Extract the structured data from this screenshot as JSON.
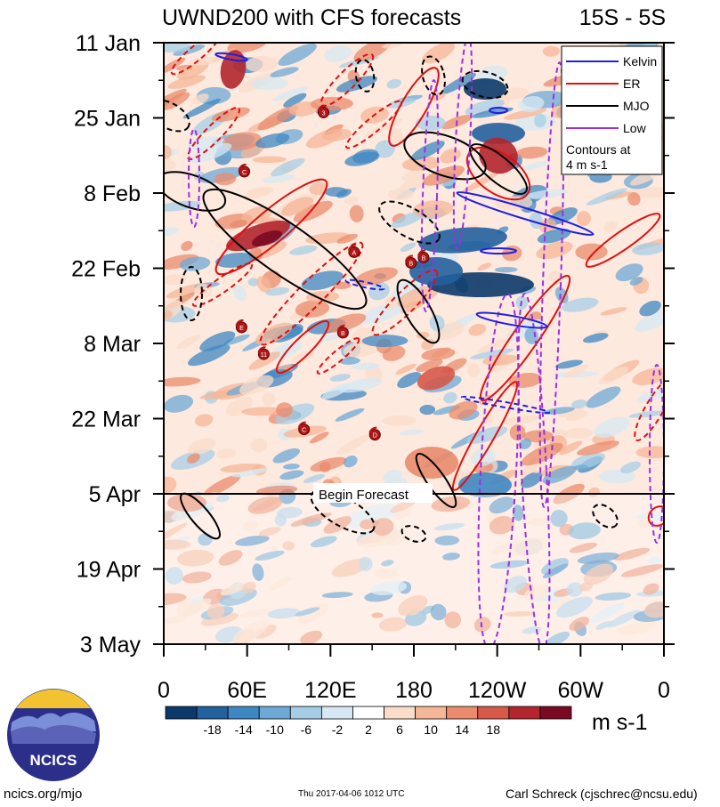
{
  "chart_data": {
    "type": "heatmap",
    "title": "UWND200 with CFS forecasts",
    "region": "15S - 5S",
    "x_ticks": [
      "0",
      "60E",
      "120E",
      "180",
      "120W",
      "60W",
      "0"
    ],
    "y_ticks": [
      "11 Jan",
      "25 Jan",
      "8 Feb",
      "22 Feb",
      "8 Mar",
      "22 Mar",
      "5 Apr",
      "19 Apr",
      "3 May"
    ],
    "xlim": [
      0,
      360
    ],
    "ylim_days": [
      "11 Jan",
      "3 May"
    ],
    "forecast_line": {
      "date": "5 Apr",
      "label": "Begin Forecast"
    },
    "legend": {
      "position": "top-right",
      "entries": [
        {
          "name": "Kelvin",
          "color": "#1f1fe0"
        },
        {
          "name": "ER",
          "color": "#e01010"
        },
        {
          "name": "MJO",
          "color": "#000000"
        },
        {
          "name": "Low",
          "color": "#9b30e0"
        }
      ],
      "note_line1": "Contours at",
      "note_line2": "4 m s-1"
    },
    "colorbar": {
      "ticks": [
        "-18",
        "-14",
        "-10",
        "-6",
        "-2",
        "2",
        "6",
        "10",
        "14",
        "18"
      ],
      "unit": "m s-1",
      "colors": [
        "#0b3a6a",
        "#23609e",
        "#3f87c2",
        "#6ea9d6",
        "#a7cde6",
        "#d6e8f3",
        "#ffffff",
        "#fbdcc9",
        "#f5b597",
        "#e98b6c",
        "#d6594a",
        "#b3262e",
        "#7a0a22"
      ]
    },
    "cyclones": [
      {
        "label": "3",
        "lon": 115,
        "date": "24 Jan"
      },
      {
        "label": "C",
        "lon": 58,
        "date": "4 Feb"
      },
      {
        "label": "A",
        "lon": 137,
        "date": "19 Feb"
      },
      {
        "label": "B",
        "lon": 178,
        "date": "21 Feb"
      },
      {
        "label": "B",
        "lon": 187,
        "date": "20 Feb"
      },
      {
        "label": "E",
        "lon": 56,
        "date": "5 Mar"
      },
      {
        "label": "B",
        "lon": 129,
        "date": "6 Mar"
      },
      {
        "label": "11",
        "lon": 72,
        "date": "10 Mar"
      },
      {
        "label": "C",
        "lon": 101,
        "date": "24 Mar"
      },
      {
        "label": "D",
        "lon": 152,
        "date": "25 Mar"
      }
    ]
  },
  "logo": {
    "text": "NCICS"
  },
  "footer": {
    "left": "ncics.org/mjo",
    "mid": "Thu 2017-04-06 1012 UTC",
    "right": "Carl Schreck (cjschrec@ncsu.edu)"
  }
}
